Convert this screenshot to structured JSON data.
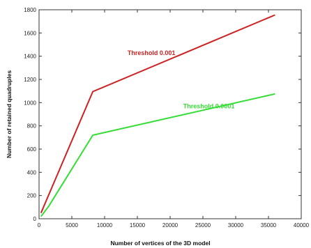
{
  "chart_data": {
    "type": "line",
    "xlabel": "Number of vertices of the 3D model",
    "ylabel": "Number of retained quadruples",
    "xlim": [
      0,
      40000
    ],
    "ylim": [
      0,
      1800
    ],
    "xticks": [
      0,
      5000,
      10000,
      15000,
      20000,
      25000,
      30000,
      35000,
      40000
    ],
    "yticks": [
      0,
      200,
      400,
      600,
      800,
      1000,
      1200,
      1400,
      1600,
      1800
    ],
    "xtick_labels": [
      "0",
      "5000",
      "10000",
      "15000",
      "20000",
      "25000",
      "30000",
      "35000",
      "40000"
    ],
    "ytick_labels": [
      "0",
      "200",
      "400",
      "600",
      "800",
      "1000",
      "1200",
      "1400",
      "1600",
      "1800"
    ],
    "grid": false,
    "legend": "none",
    "series": [
      {
        "color": "#cc2222",
        "points": [
          [
            300,
            50
          ],
          [
            8200,
            1095
          ],
          [
            36000,
            1755
          ]
        ]
      },
      {
        "color": "#33dd33",
        "points": [
          [
            300,
            20
          ],
          [
            1500,
            110
          ],
          [
            8200,
            720
          ],
          [
            36000,
            1075
          ]
        ]
      }
    ],
    "annotations": [
      {
        "text": "Threshold 0.001",
        "x": 13500,
        "y": 1410,
        "color": "#cc2222"
      },
      {
        "text": "Threshold 0.0001",
        "x": 22000,
        "y": 950,
        "color": "#33dd33"
      }
    ]
  }
}
